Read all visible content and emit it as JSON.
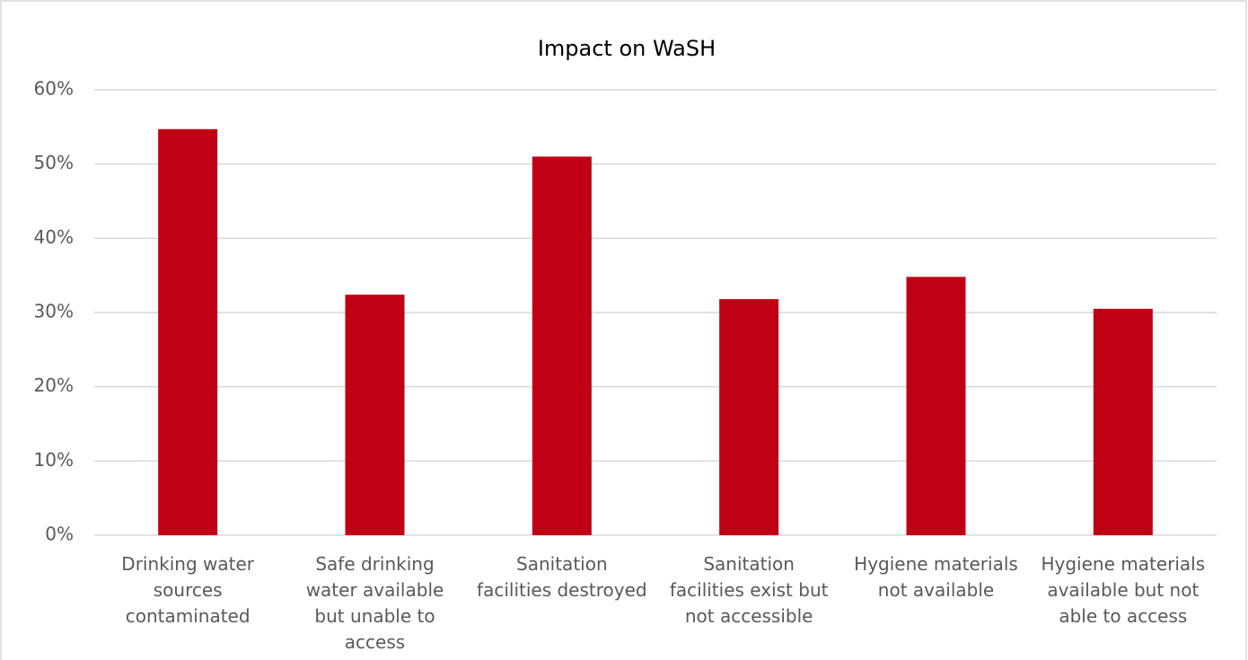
{
  "chart_data": {
    "type": "bar",
    "title": "Impact on WaSH",
    "categories": [
      "Drinking water sources contaminated",
      "Safe drinking water available but unable to access",
      "Sanitation facilities destroyed",
      "Sanitation facilities exist but not accessible",
      "Hygiene materials not available",
      "Hygiene materials available but not able to access"
    ],
    "values": [
      54.7,
      32.4,
      51.0,
      31.8,
      34.8,
      30.5
    ],
    "color": "#c00014",
    "ylim": [
      0,
      60
    ],
    "yticks": [
      {
        "value": 0,
        "label": "0%"
      },
      {
        "value": 10,
        "label": "10%"
      },
      {
        "value": 20,
        "label": "20%"
      },
      {
        "value": 30,
        "label": "30%"
      },
      {
        "value": 40,
        "label": "40%"
      },
      {
        "value": 50,
        "label": "50%"
      },
      {
        "value": 60,
        "label": "60%"
      }
    ],
    "grid": true
  }
}
